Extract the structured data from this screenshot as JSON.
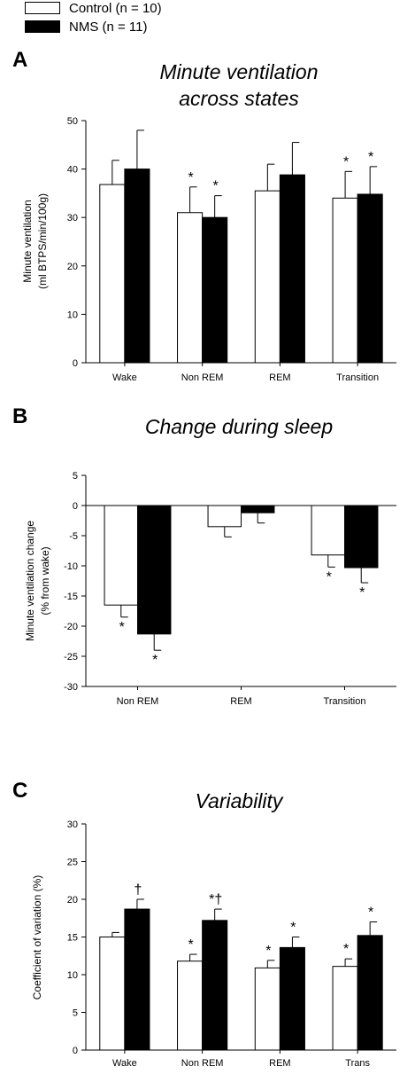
{
  "legend": [
    {
      "label": "Control (n = 10)",
      "color": "#ffffff"
    },
    {
      "label": "NMS (n = 11)",
      "color": "#000000"
    }
  ],
  "chart_data": [
    {
      "panel": "A",
      "type": "bar",
      "title": "Minute ventilation across states",
      "title_lines": [
        "Minute ventilation",
        "across states"
      ],
      "ylabel_lines": [
        "Minute ventilation",
        "(ml BTPS/min/100g)"
      ],
      "categories": [
        "Wake",
        "Non REM",
        "REM",
        "Transition"
      ],
      "ylim": [
        0,
        50
      ],
      "yticks": [
        0,
        10,
        20,
        30,
        40,
        50
      ],
      "series": [
        {
          "name": "Control (n = 10)",
          "values": [
            36.8,
            31.0,
            35.5,
            34.0
          ],
          "errors": [
            5.0,
            5.3,
            5.5,
            5.5
          ],
          "markers": [
            "",
            "*",
            "",
            "*"
          ]
        },
        {
          "name": "NMS (n = 11)",
          "values": [
            40.0,
            30.0,
            38.8,
            34.8
          ],
          "errors": [
            8.0,
            4.5,
            6.7,
            5.7
          ],
          "markers": [
            "",
            "*",
            "",
            "*"
          ]
        }
      ]
    },
    {
      "panel": "B",
      "type": "bar",
      "title": "Change during sleep",
      "title_lines": [
        "Change during sleep"
      ],
      "ylabel_lines": [
        "Minute ventilation change",
        "(% from wake)"
      ],
      "categories": [
        "Non REM",
        "REM",
        "Transition"
      ],
      "ylim": [
        -30,
        5
      ],
      "yticks": [
        -30,
        -25,
        -20,
        -15,
        -10,
        -5,
        0,
        5
      ],
      "series": [
        {
          "name": "Control (n = 10)",
          "values": [
            -16.5,
            -3.5,
            -8.2
          ],
          "errors": [
            2.0,
            1.7,
            2.0
          ],
          "markers": [
            "*",
            "",
            "*"
          ]
        },
        {
          "name": "NMS (n = 11)",
          "values": [
            -21.3,
            -1.2,
            -10.3
          ],
          "errors": [
            2.7,
            1.7,
            2.5
          ],
          "markers": [
            "*",
            "",
            "*"
          ]
        }
      ]
    },
    {
      "panel": "C",
      "type": "bar",
      "title": "Variability",
      "title_lines": [
        "Variability"
      ],
      "ylabel_lines": [
        "Coefficient of variation (%)"
      ],
      "categories": [
        "Wake",
        "Non REM",
        "REM",
        "Trans"
      ],
      "ylim": [
        0,
        30
      ],
      "yticks": [
        0,
        5,
        10,
        15,
        20,
        25,
        30
      ],
      "series": [
        {
          "name": "Control (n = 10)",
          "values": [
            15.0,
            11.8,
            10.9,
            11.1
          ],
          "errors": [
            0.6,
            0.9,
            1.0,
            1.0
          ],
          "markers": [
            "",
            "*",
            "*",
            "*"
          ]
        },
        {
          "name": "NMS (n = 11)",
          "values": [
            18.7,
            17.2,
            13.6,
            15.2
          ],
          "errors": [
            1.3,
            1.5,
            1.4,
            1.8
          ],
          "markers": [
            "†",
            "*†",
            "*",
            "*"
          ]
        }
      ]
    }
  ]
}
